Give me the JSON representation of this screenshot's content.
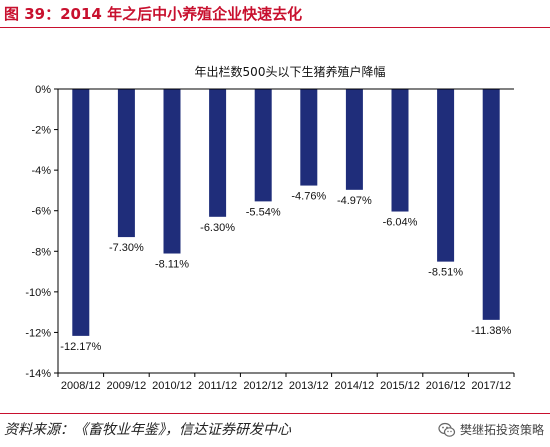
{
  "figure": {
    "title": "图 39：2014 年之后中小养殖企业快速去化",
    "source": "资料来源：《畜牧业年鉴》，信达证券研发中心",
    "watermark": "樊继拓投资策略"
  },
  "colors": {
    "bar": "#1f2d7a",
    "accent": "#c8102e"
  },
  "chart_data": {
    "type": "bar",
    "title": "年出栏数500头以下生猪养殖户降幅",
    "categories": [
      "2008/12",
      "2009/12",
      "2010/12",
      "2011/12",
      "2012/12",
      "2013/12",
      "2014/12",
      "2015/12",
      "2016/12",
      "2017/12"
    ],
    "values": [
      -12.17,
      -7.3,
      -8.11,
      -6.3,
      -5.54,
      -4.76,
      -4.97,
      -6.04,
      -8.51,
      -11.38
    ],
    "data_labels": [
      "-12.17%",
      "-7.30%",
      "-8.11%",
      "-6.30%",
      "-5.54%",
      "-4.76%",
      "-4.97%",
      "-6.04%",
      "-8.51%",
      "-11.38%"
    ],
    "ylim": [
      -14,
      0
    ],
    "yticks": [
      0,
      -2,
      -4,
      -6,
      -8,
      -10,
      -12,
      -14
    ],
    "ytick_labels": [
      "0%",
      "-2%",
      "-4%",
      "-6%",
      "-8%",
      "-10%",
      "-12%",
      "-14%"
    ],
    "xlabel": "",
    "ylabel": "",
    "legend": "none",
    "grid": false
  }
}
